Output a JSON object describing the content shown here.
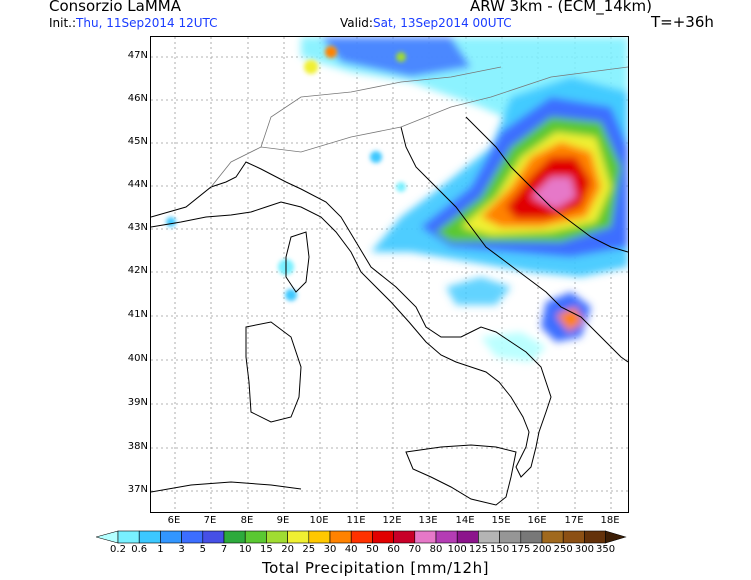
{
  "header": {
    "org": "Consorzio LaMMA",
    "model": "ARW 3km - (ECM_14km)",
    "init_label": "Init.:",
    "init_value": "Thu, 11Sep2014 12UTC",
    "valid_label": "Valid:",
    "valid_value": "Sat, 13Sep2014 00UTC",
    "lead_time": "T=+36h"
  },
  "map": {
    "lat_labels": [
      "47N",
      "46N",
      "45N",
      "44N",
      "43N",
      "42N",
      "41N",
      "40N",
      "39N",
      "38N",
      "37N"
    ],
    "lon_labels": [
      "6E",
      "7E",
      "8E",
      "9E",
      "10E",
      "11E",
      "12E",
      "13E",
      "14E",
      "15E",
      "16E",
      "17E",
      "18E"
    ]
  },
  "legend": {
    "title": "Total Precipitation [mm/12h]",
    "values": [
      "0.2",
      "0.6",
      "1",
      "3",
      "5",
      "7",
      "10",
      "15",
      "20",
      "25",
      "30",
      "40",
      "50",
      "60",
      "70",
      "80",
      "100",
      "125",
      "150",
      "175",
      "200",
      "250",
      "300",
      "350"
    ],
    "colors": [
      "#b4ffff",
      "#78f0ff",
      "#3cc8ff",
      "#3296ff",
      "#3c6eff",
      "#4650e6",
      "#2daa3c",
      "#5ac832",
      "#a0dc32",
      "#f0f032",
      "#ffc800",
      "#ff8200",
      "#ff3200",
      "#e10000",
      "#c80028",
      "#e678c8",
      "#b43cb4",
      "#8c148c",
      "#b4b4b4",
      "#969696",
      "#787878",
      "#a0691e",
      "#8c5014",
      "#64320a",
      "#3c1e05"
    ]
  }
}
